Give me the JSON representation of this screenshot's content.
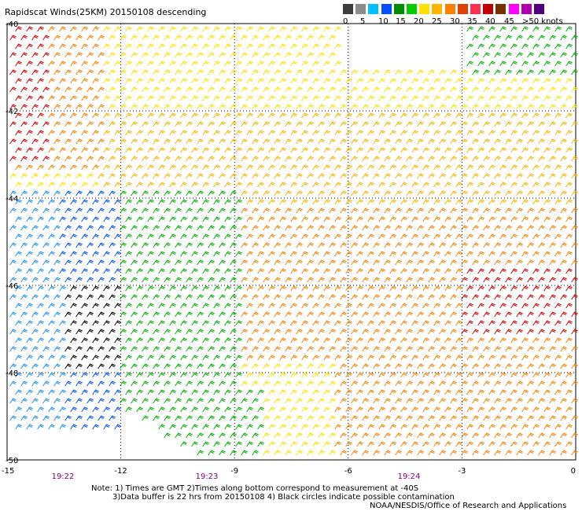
{
  "title": "Rapidscat Winds(25KM) 20150108 descending",
  "legend": {
    "swatches": [
      "#3c3c3c",
      "#8c8c8c",
      "#00bfff",
      "#0050ff",
      "#008c00",
      "#00cc00",
      "#ffe000",
      "#ffb400",
      "#ff8000",
      "#e04000",
      "#ff3050",
      "#c00000",
      "#783000",
      "#ff00ff",
      "#b000b0",
      "#500080"
    ],
    "labels": [
      "0",
      "5",
      "10",
      "15",
      "20",
      "25",
      "30",
      "35",
      "40",
      "45",
      ">50 knots"
    ]
  },
  "axes": {
    "y_labels": [
      "-40",
      "-42",
      "-44",
      "-46",
      "-48",
      "-50"
    ],
    "x_labels": [
      "-15",
      "-12",
      "-9",
      "-6",
      "-3",
      "0"
    ],
    "x_range": [
      -15,
      0
    ],
    "y_range": [
      -50,
      -40
    ],
    "grid": "dotted"
  },
  "times": [
    "19:22",
    "19:23",
    "19:24"
  ],
  "notes": {
    "line1": "Note: 1) Times are GMT 2)Times along bottom correspond to measurement at -40S",
    "line2": "3)Data buffer is 22 hrs from 20150108 4) Black circles indicate possible contamination"
  },
  "credit": "NOAA/NESDIS/Office of Research and Applications"
}
